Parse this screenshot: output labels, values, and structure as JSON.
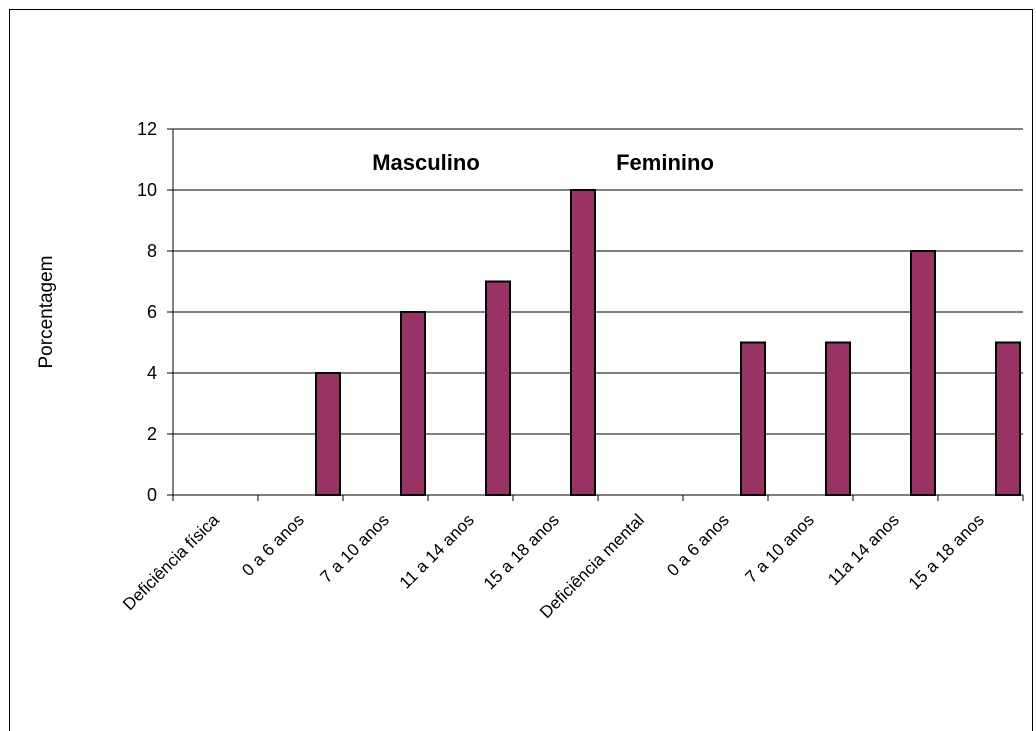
{
  "chart_data": {
    "type": "bar",
    "ylabel": "Porcentagem",
    "xlabel": "",
    "ylim": [
      0,
      12
    ],
    "yticks": [
      0,
      2,
      4,
      6,
      8,
      10,
      12
    ],
    "grid": true,
    "bar_color": "#993366",
    "categories": [
      "Deficiência física",
      "0 a 6 anos",
      "7 a 10 anos",
      "11 a 14 anos",
      "15 a 18 anos",
      "Deficiência mental",
      "0 a 6 anos",
      "7 a 10 anos",
      "11a 14 anos",
      "15 a 18 anos"
    ],
    "values": [
      0,
      4,
      6,
      7,
      10,
      0,
      5,
      5,
      8,
      5
    ],
    "annotations": [
      "Masculino",
      "Feminino"
    ]
  }
}
